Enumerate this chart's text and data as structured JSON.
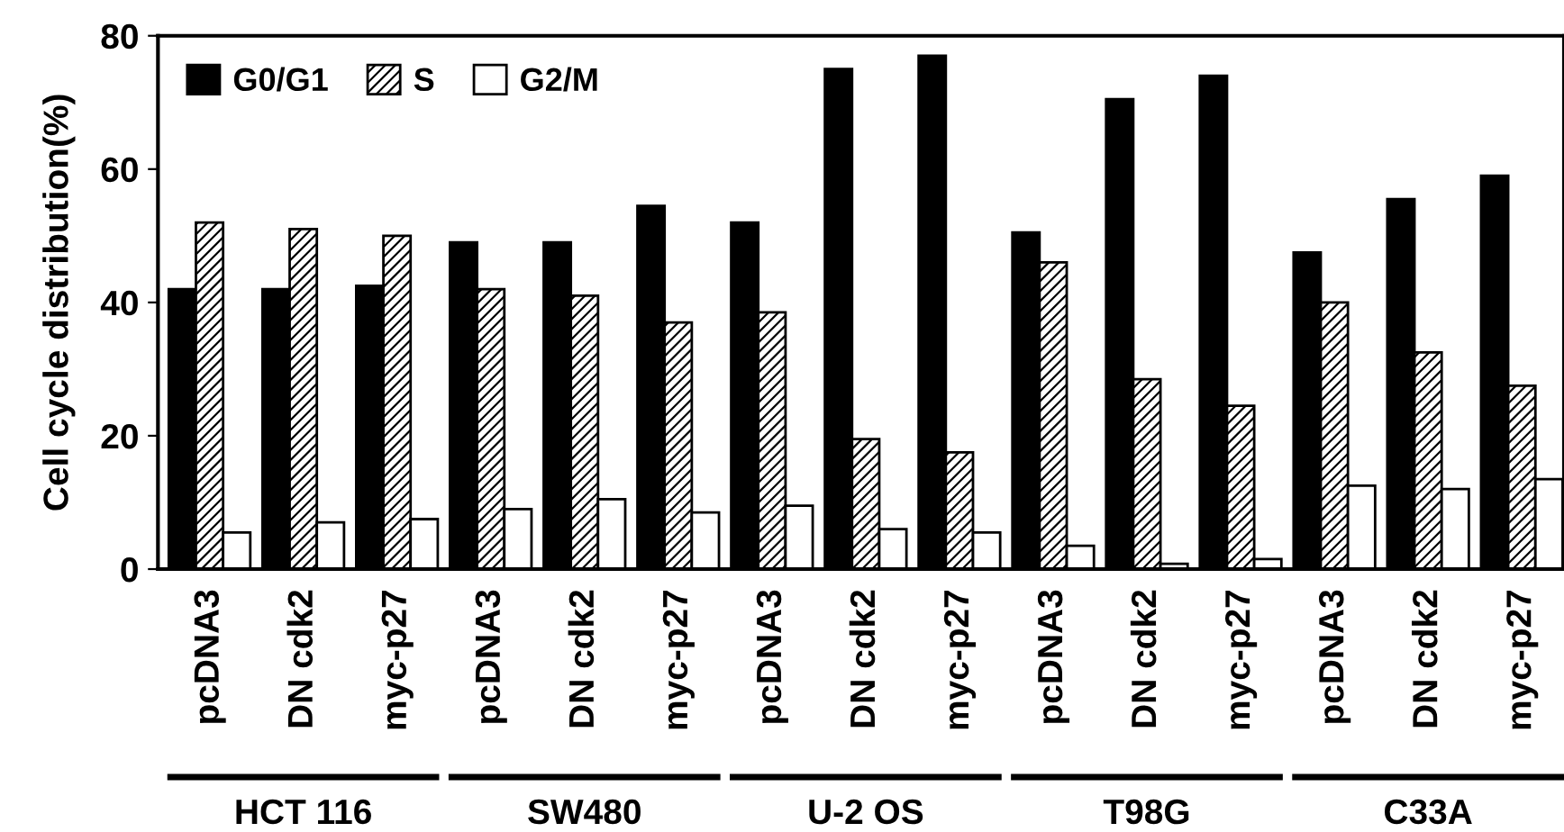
{
  "chart_data": {
    "type": "bar",
    "ylabel": "Cell cycle distribution(%)",
    "categories": [
      "pcDNA3",
      "DN cdk2",
      "myc-p27",
      "pcDNA3",
      "DN cdk2",
      "myc-p27",
      "pcDNA3",
      "DN cdk2",
      "myc-p27",
      "pcDNA3",
      "DN cdk2",
      "myc-p27",
      "pcDNA3",
      "DN cdk2",
      "myc-p27"
    ],
    "series": [
      {
        "name": "G0/G1",
        "color": "#000000",
        "values": [
          42,
          42,
          42.5,
          49,
          49,
          54.5,
          52,
          75,
          77,
          50.5,
          70.5,
          74,
          47.5,
          55.5,
          59
        ]
      },
      {
        "name": "S",
        "color": "#000000",
        "values": [
          52,
          51,
          50,
          42,
          41,
          37,
          38.5,
          19.5,
          17.5,
          46,
          28.5,
          24.5,
          40,
          32.5,
          27.5
        ]
      },
      {
        "name": "G2/M",
        "color": "#ffffff",
        "values": [
          5.5,
          7,
          7.5,
          9,
          10.5,
          8.5,
          9.5,
          6,
          5.5,
          3.5,
          0.8,
          1.5,
          12.5,
          12,
          13.5
        ]
      }
    ],
    "annotations": [
      "HCT 116",
      "SW480",
      "U-2 OS",
      "T98G",
      "C33A"
    ],
    "ylim": [
      0,
      80
    ],
    "yticks": [
      0,
      20,
      40,
      60,
      80
    ],
    "grid": false,
    "legend": "top left"
  }
}
